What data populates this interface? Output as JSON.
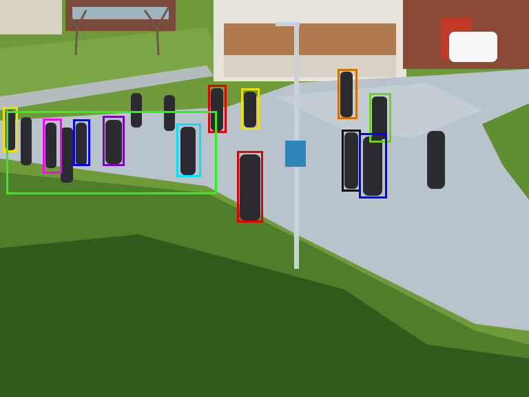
{
  "scene": {
    "colors": {
      "grass_sunlit": "#6f9a3a",
      "grass_shade": "#2f5a1c",
      "path": "#b9c3cc",
      "building": "#e8e4dc",
      "brick": "#8a4a36",
      "sign": "#2f86b8"
    }
  },
  "detections": [
    {
      "label": "pedestrian",
      "color": "#ff00ff"
    },
    {
      "label": "pedestrian",
      "color": "#f0e000"
    },
    {
      "label": "pedestrian",
      "color": "#0000ff"
    },
    {
      "label": "pedestrian",
      "color": "#8000c0"
    },
    {
      "label": "pedestrian",
      "color": "#00e0ff"
    },
    {
      "label": "pedestrian",
      "color": "#e00000"
    },
    {
      "label": "pedestrian",
      "color": "#f0e000"
    },
    {
      "label": "pedestrian",
      "color": "#d07000"
    },
    {
      "label": "pedestrian",
      "color": "#70d020"
    },
    {
      "label": "pedestrian",
      "color": "#000000"
    },
    {
      "label": "pedestrian",
      "color": "#0000ff"
    },
    {
      "label": "pedestrian",
      "color": "#e00000"
    },
    {
      "label": "group",
      "color": "#30f020"
    }
  ]
}
